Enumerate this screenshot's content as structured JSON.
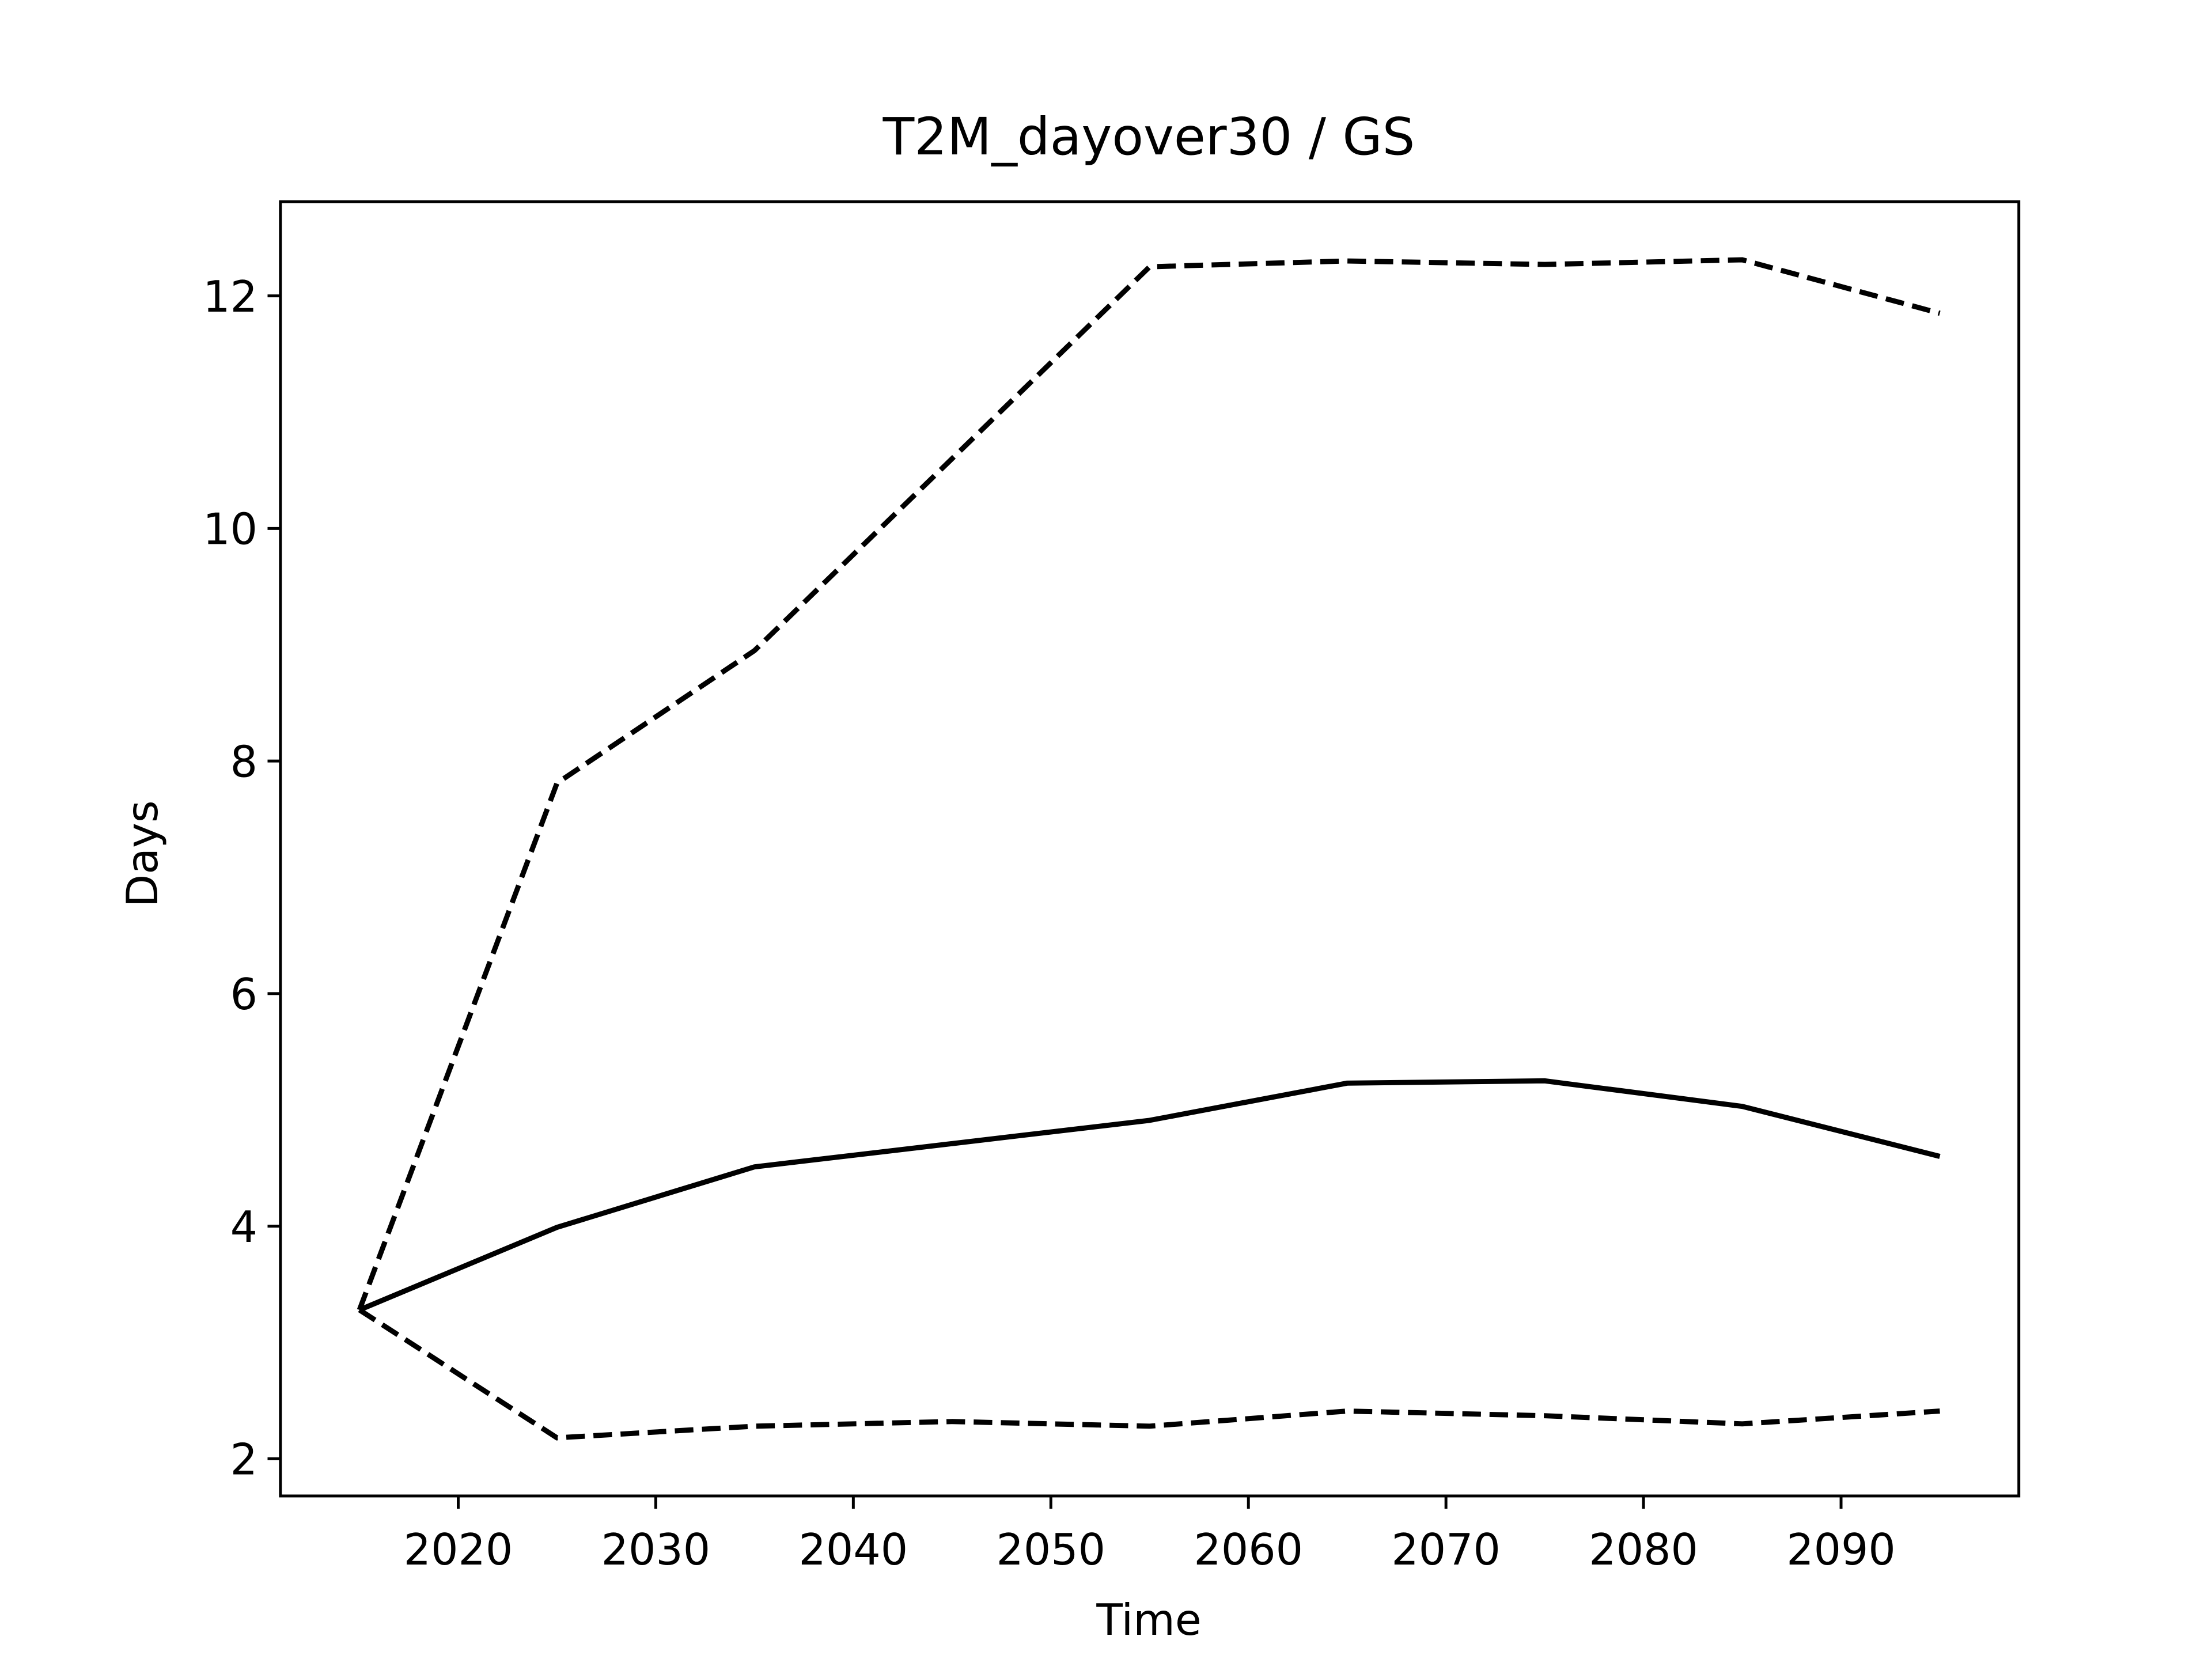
{
  "chart_data": {
    "type": "line",
    "title": "T2M_dayover30 / GS",
    "x_label": "Time",
    "y_label": "Days",
    "x": [
      2015,
      2025,
      2035,
      2045,
      2055,
      2065,
      2075,
      2085,
      2095
    ],
    "series": [
      {
        "color": "#000000",
        "linestyle": "solid",
        "values": [
          3.28,
          3.99,
          4.51,
          4.71,
          4.91,
          5.23,
          5.25,
          5.03,
          4.6
        ]
      },
      {
        "color": "#000000",
        "linestyle": "dashed",
        "values": [
          3.28,
          7.81,
          8.95,
          10.6,
          12.25,
          12.3,
          12.27,
          12.31,
          11.85
        ]
      },
      {
        "color": "#000000",
        "linestyle": "dashed",
        "values": [
          3.28,
          2.18,
          2.28,
          2.32,
          2.28,
          2.41,
          2.37,
          2.3,
          2.41
        ]
      }
    ],
    "xlim": [
      2011,
      2099
    ],
    "ylim": [
      1.68,
      12.81
    ],
    "xticks": [
      2020,
      2030,
      2040,
      2050,
      2060,
      2070,
      2080,
      2090
    ],
    "yticks": [
      2,
      4,
      6,
      8,
      10,
      12
    ],
    "grid": false
  }
}
